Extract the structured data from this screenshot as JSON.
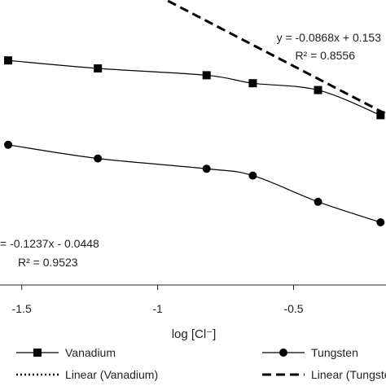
{
  "chart_data": {
    "type": "line",
    "xlabel": "log [Cl⁻]",
    "xlim": [
      -1.58,
      -0.16
    ],
    "ylim": [
      -0.175,
      0.075
    ],
    "xticks": [
      -1.5,
      -1,
      -0.5
    ],
    "xtick_labels": [
      "-1.5",
      "-1",
      "-0.5"
    ],
    "grid": false,
    "legend_position": "bottom",
    "series": [
      {
        "name": "Vanadium",
        "kind": "data",
        "marker": "square",
        "color": "#000000",
        "x": [
          -1.55,
          -1.22,
          -0.82,
          -0.65,
          -0.41,
          -0.18
        ],
        "y": [
          0.022,
          0.015,
          0.009,
          0.002,
          -0.004,
          -0.026
        ]
      },
      {
        "name": "Tungsten",
        "kind": "data",
        "marker": "circle",
        "color": "#000000",
        "x": [
          -1.55,
          -1.22,
          -0.82,
          -0.65,
          -0.41,
          -0.18
        ],
        "y": [
          -0.052,
          -0.064,
          -0.073,
          -0.079,
          -0.102,
          -0.12
        ]
      },
      {
        "name": "Linear (Vanadium)",
        "kind": "trendline",
        "dash": "dotted",
        "color": "#000000",
        "slope": -0.0868,
        "intercept": 0.153
      },
      {
        "name": "Linear (Tungsten)",
        "kind": "trendline",
        "dash": "dashed",
        "color": "#000000",
        "slope": -0.1237,
        "intercept": -0.0448
      }
    ],
    "annotations": [
      {
        "text": "y = -0.0868x + 0.153",
        "anchor": "top-right"
      },
      {
        "text": "R² = 0.8556",
        "anchor": "top-right"
      },
      {
        "text": "= -0.1237x - 0.0448",
        "anchor": "lower-left"
      },
      {
        "text": "R² = 0.9523",
        "anchor": "lower-left"
      }
    ]
  }
}
